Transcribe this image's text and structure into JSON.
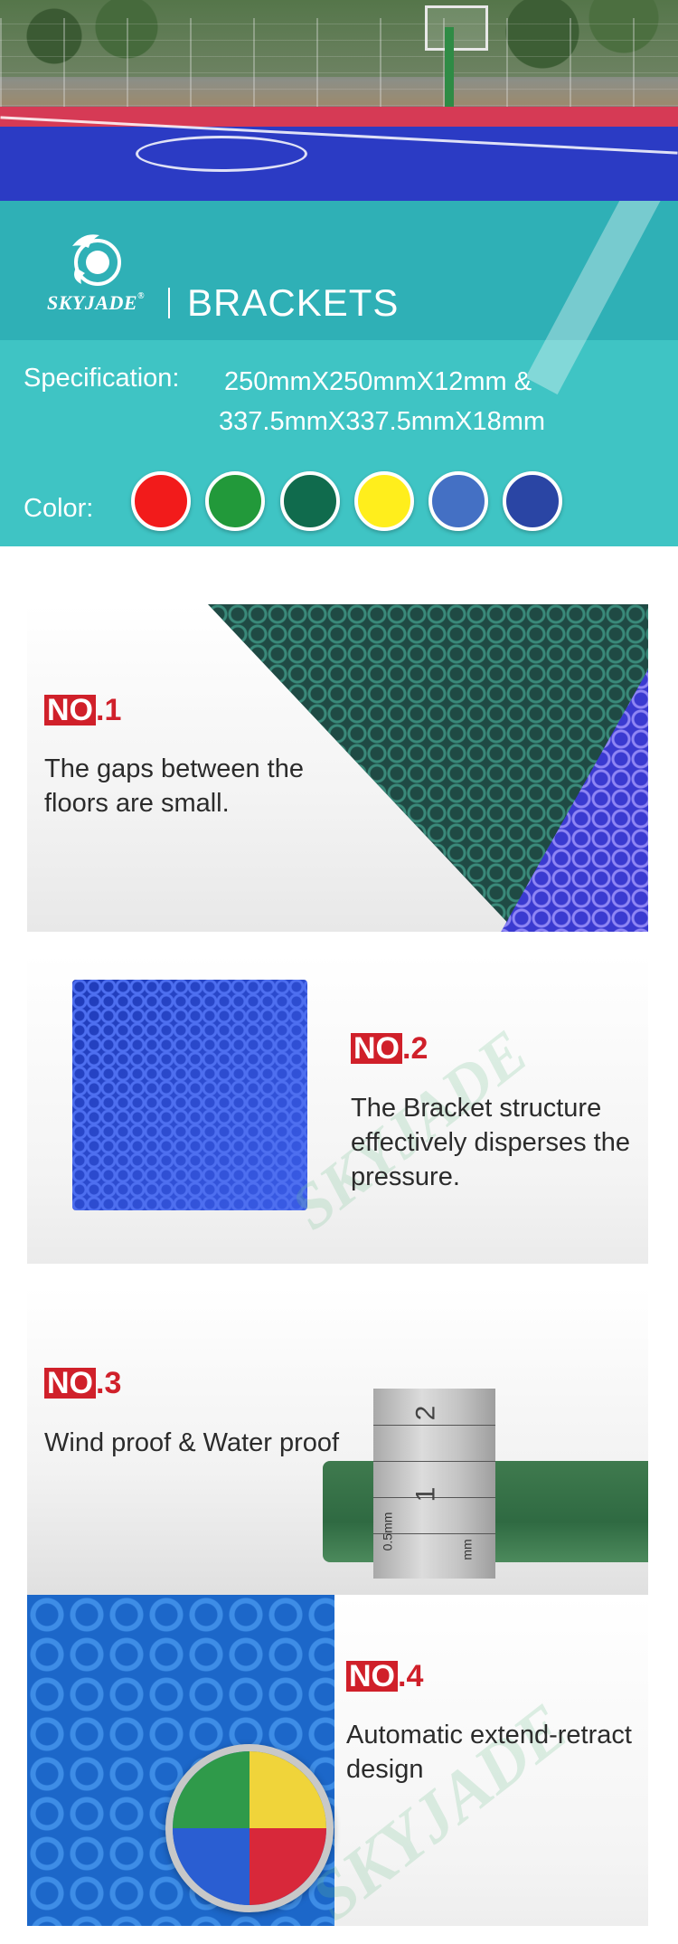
{
  "brand": {
    "logo_text": "SKYJADE",
    "registered": "®",
    "product_title": "BRACKETS"
  },
  "specification": {
    "label": "Specification:",
    "line1": "250mmX250mmX12mm &",
    "line2": "337.5mmX337.5mmX18mm"
  },
  "colors": {
    "label": "Color:",
    "swatches": [
      "#f21b1b",
      "#22993a",
      "#106b4d",
      "#ffee1c",
      "#4470c4",
      "#2a45a4"
    ]
  },
  "features": [
    {
      "no_prefix": "NO",
      "no_suffix": ".1",
      "text": "The gaps between the floors are small."
    },
    {
      "no_prefix": "NO",
      "no_suffix": ".2",
      "text": "The Bracket structure effectively disperses the pressure."
    },
    {
      "no_prefix": "NO",
      "no_suffix": ".3",
      "text": "Wind proof & Water proof"
    },
    {
      "no_prefix": "NO",
      "no_suffix": ".4",
      "text": "Automatic extend-retract design"
    }
  ],
  "ruler": {
    "num1": "1",
    "num2": "2",
    "unit_left": "0.5mm",
    "unit_right": "mm"
  },
  "watermark": "SKYJADE"
}
